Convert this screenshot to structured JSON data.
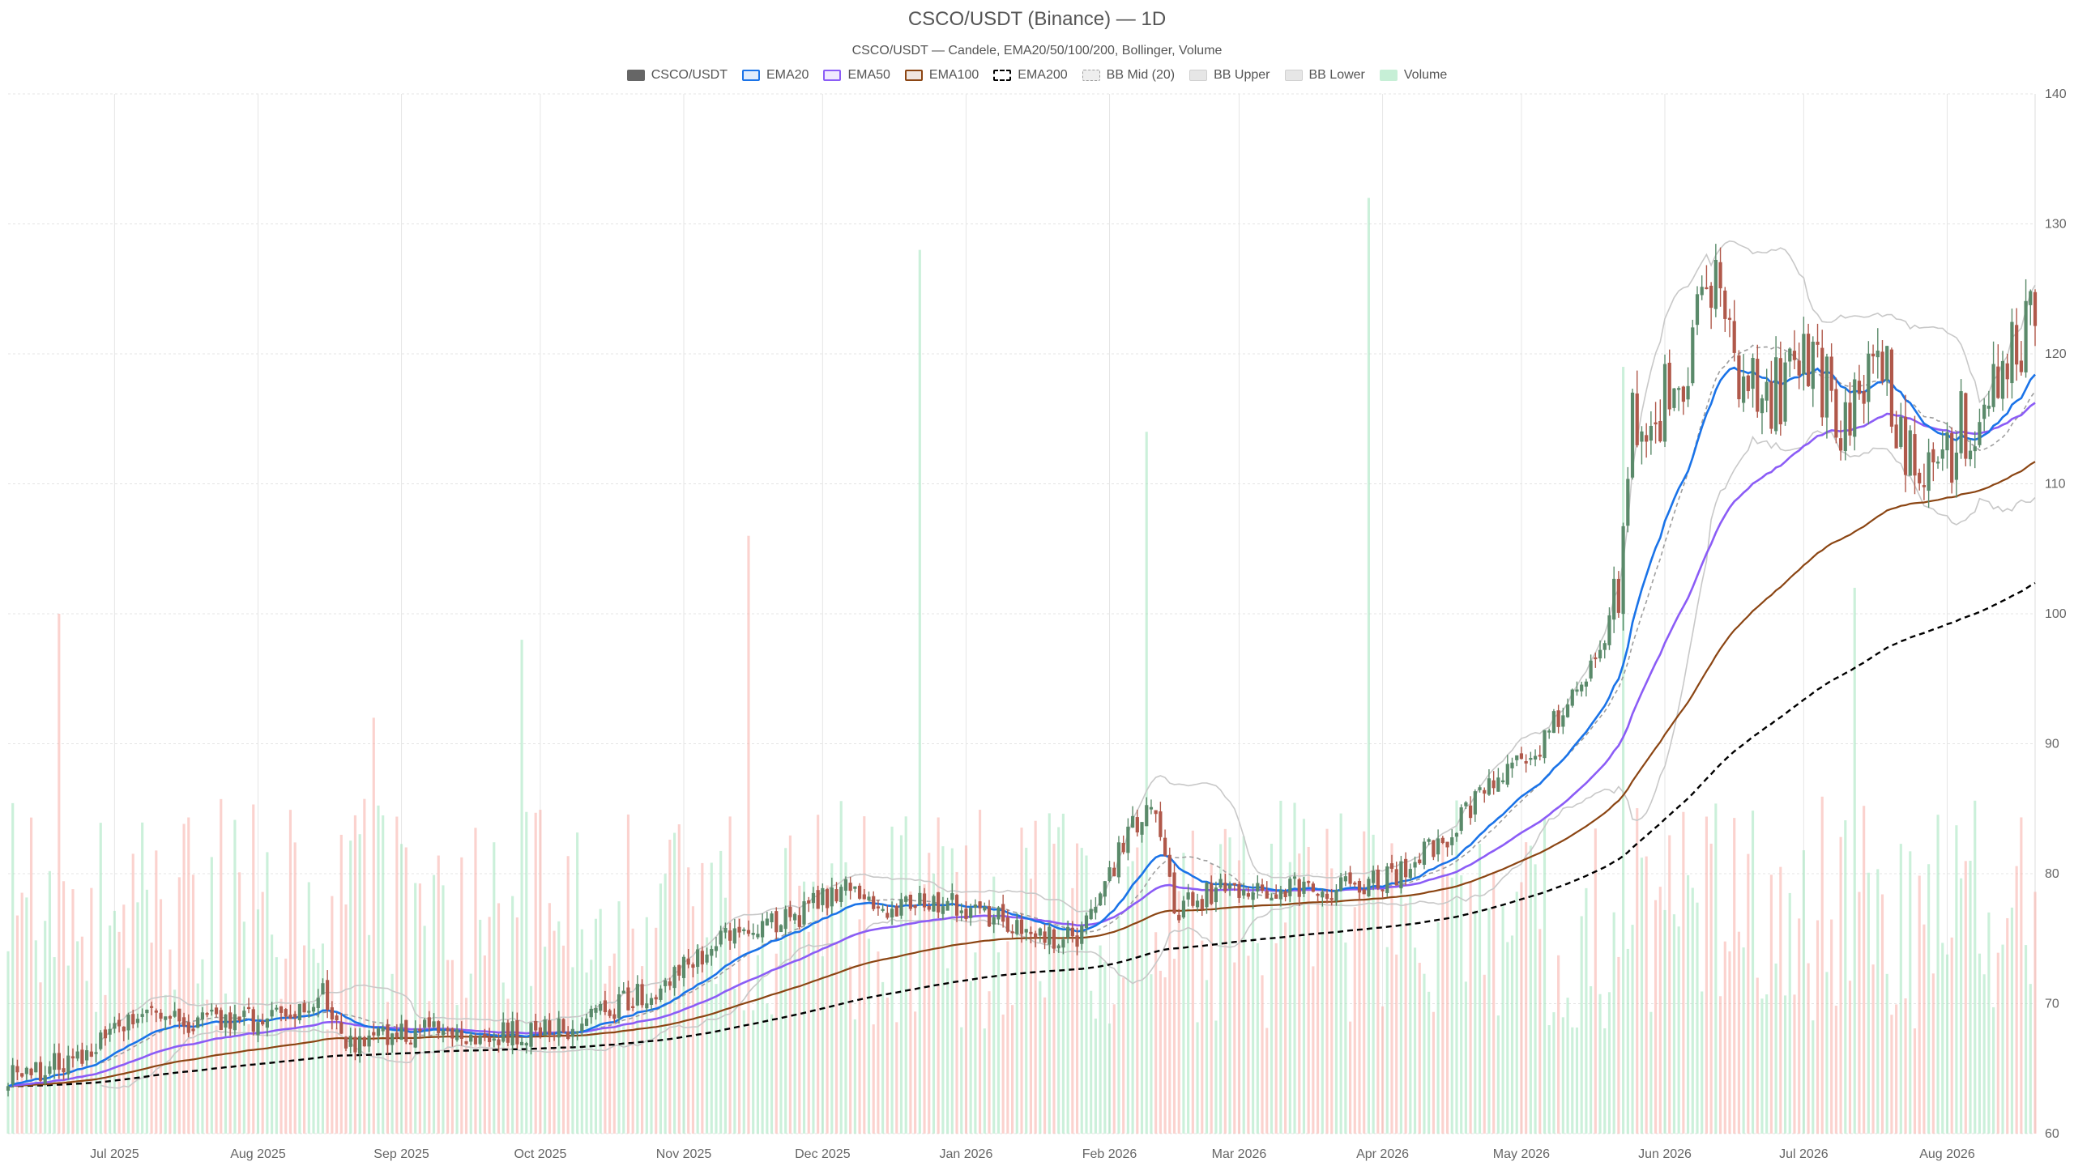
{
  "chart_data": {
    "type": "candlestick",
    "title": "CSCO/USDT (Binance) — 1D",
    "subtitle": "CSCO/USDT — Candele, EMA20/50/100/200, Bollinger, Volume",
    "ylim": [
      60,
      140
    ],
    "y_ticks": [
      "60",
      "70",
      "80",
      "90",
      "100",
      "110",
      "120",
      "130",
      "140"
    ],
    "x_ticks": [
      "Jul 2025",
      "Aug 2025",
      "Sep 2025",
      "Oct 2025",
      "Nov 2025",
      "Dec 2025",
      "Jan 2026",
      "Feb 2026",
      "Mar 2026",
      "Apr 2026",
      "May 2026",
      "Jun 2026",
      "Jul 2026",
      "Aug 2026"
    ],
    "grid": true,
    "legend_position": "top",
    "legend": [
      {
        "label": "CSCO/USDT",
        "color": "#666666",
        "style": "fill"
      },
      {
        "label": "EMA20",
        "color": "#1a73e8",
        "style": "line"
      },
      {
        "label": "EMA50",
        "color": "#8b5cf6",
        "style": "line"
      },
      {
        "label": "EMA100",
        "color": "#8b4513",
        "style": "line"
      },
      {
        "label": "EMA200",
        "color": "#000000",
        "style": "dashed"
      },
      {
        "label": "BB Mid (20)",
        "color": "#9e9e9e",
        "style": "dotted"
      },
      {
        "label": "BB Upper",
        "color": "#bdbdbd",
        "style": "fill-light"
      },
      {
        "label": "BB Lower",
        "color": "#bdbdbd",
        "style": "fill-light"
      },
      {
        "label": "Volume",
        "color": "#8fe0b0",
        "style": "fill-volume"
      }
    ],
    "colors": {
      "up": "#5a8a6a",
      "down": "#b0584a",
      "vol_up": "#a8e6c1",
      "vol_down": "#f8b4ae",
      "ema20": "#1a73e8",
      "ema50": "#8b5cf6",
      "ema100": "#8b4513",
      "ema200": "#000000",
      "bb": "#c8c8c8",
      "bb_mid": "#9e9e9e"
    },
    "trend_anchors": [
      [
        "2025-06-10",
        64.5
      ],
      [
        "2025-06-25",
        66.0
      ],
      [
        "2025-07-05",
        69.0
      ],
      [
        "2025-07-20",
        68.5
      ],
      [
        "2025-08-10",
        69.0
      ],
      [
        "2025-08-15",
        71.0
      ],
      [
        "2025-08-20",
        67.0
      ],
      [
        "2025-09-05",
        68.0
      ],
      [
        "2025-09-20",
        67.5
      ],
      [
        "2025-10-05",
        68.0
      ],
      [
        "2025-10-25",
        71.0
      ],
      [
        "2025-11-05",
        74.0
      ],
      [
        "2025-11-15",
        76.0
      ],
      [
        "2025-11-25",
        76.5
      ],
      [
        "2025-12-05",
        79.0
      ],
      [
        "2025-12-15",
        77.0
      ],
      [
        "2025-12-25",
        78.0
      ],
      [
        "2026-01-05",
        77.0
      ],
      [
        "2026-01-15",
        75.0
      ],
      [
        "2026-01-25",
        75.0
      ],
      [
        "2026-02-05",
        83.0
      ],
      [
        "2026-02-10",
        86.0
      ],
      [
        "2026-02-15",
        77.0
      ],
      [
        "2026-02-25",
        79.0
      ],
      [
        "2026-03-10",
        79.0
      ],
      [
        "2026-03-25",
        79.0
      ],
      [
        "2026-04-05",
        80.0
      ],
      [
        "2026-04-15",
        83.0
      ],
      [
        "2026-04-25",
        87.0
      ],
      [
        "2026-05-05",
        90.0
      ],
      [
        "2026-05-15",
        95.0
      ],
      [
        "2026-05-22",
        101.0
      ],
      [
        "2026-05-25",
        116.0
      ],
      [
        "2026-05-30",
        115.0
      ],
      [
        "2026-06-05",
        118.0
      ],
      [
        "2026-06-12",
        126.0
      ],
      [
        "2026-06-16",
        120.0
      ],
      [
        "2026-06-25",
        117.0
      ],
      [
        "2026-07-01",
        120.0
      ],
      [
        "2026-07-10",
        114.0
      ],
      [
        "2026-07-18",
        119.0
      ],
      [
        "2026-07-25",
        110.0
      ],
      [
        "2026-07-29",
        111.0
      ],
      [
        "2026-08-05",
        115.0
      ],
      [
        "2026-08-10",
        117.0
      ],
      [
        "2026-08-20",
        123.0
      ]
    ],
    "volume_spikes": [
      [
        "2025-06-19",
        100
      ],
      [
        "2025-08-26",
        92
      ],
      [
        "2025-09-27",
        98
      ],
      [
        "2025-11-15",
        106
      ],
      [
        "2025-12-22",
        128
      ],
      [
        "2026-02-09",
        114
      ],
      [
        "2026-03-29",
        132
      ],
      [
        "2026-05-23",
        119
      ],
      [
        "2026-07-12",
        102
      ]
    ],
    "series": [
      {
        "name": "CSCO/USDT",
        "type": "candles"
      },
      {
        "name": "EMA20",
        "type": "line",
        "period": 20
      },
      {
        "name": "EMA50",
        "type": "line",
        "period": 50
      },
      {
        "name": "EMA100",
        "type": "line",
        "period": 100
      },
      {
        "name": "EMA200",
        "type": "line",
        "period": 200
      },
      {
        "name": "BB Mid (20)",
        "type": "line"
      },
      {
        "name": "BB Upper",
        "type": "line"
      },
      {
        "name": "BB Lower",
        "type": "line"
      },
      {
        "name": "Volume",
        "type": "bars"
      }
    ],
    "range": {
      "start": "2025-06-08",
      "end": "2026-08-20"
    },
    "x_tick_dates": [
      "2025-07-01",
      "2025-08-01",
      "2025-09-01",
      "2025-10-01",
      "2025-11-01",
      "2025-12-01",
      "2026-01-01",
      "2026-02-01",
      "2026-03-01",
      "2026-04-01",
      "2026-05-01",
      "2026-06-01",
      "2026-07-01",
      "2026-08-01"
    ]
  }
}
